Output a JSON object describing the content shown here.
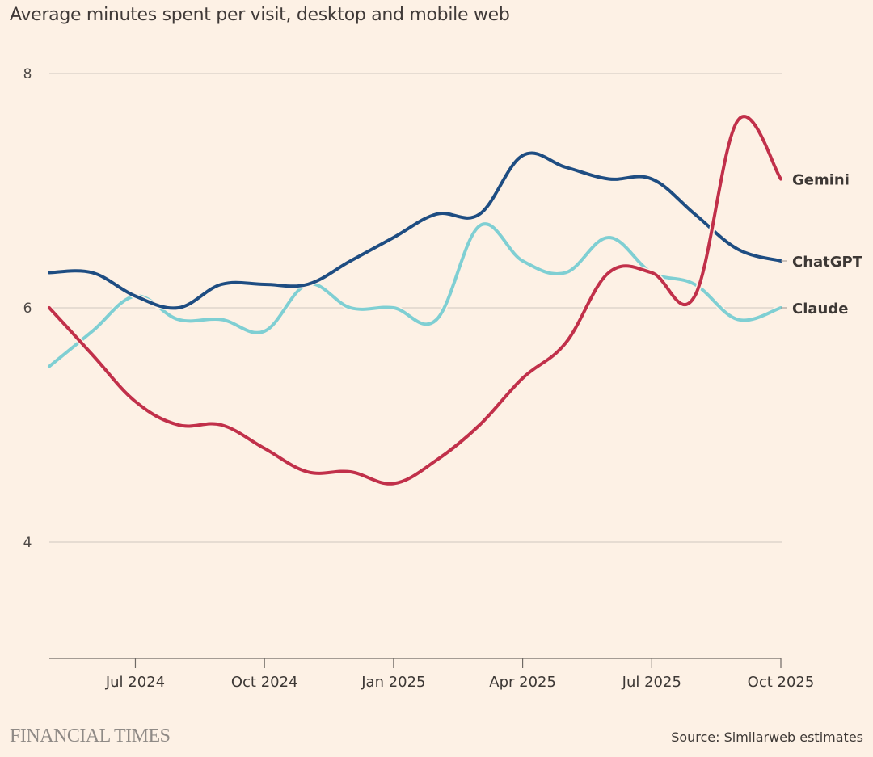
{
  "chart_data": {
    "type": "line",
    "title": "Average minutes spent per visit, desktop and mobile web",
    "xlabel": "",
    "ylabel": "",
    "ylim": [
      3,
      8.2
    ],
    "yticks": [
      4,
      6,
      8
    ],
    "grid": true,
    "x": [
      "May 2024",
      "Jun 2024",
      "Jul 2024",
      "Aug 2024",
      "Sep 2024",
      "Oct 2024",
      "Nov 2024",
      "Dec 2024",
      "Jan 2025",
      "Feb 2025",
      "Mar 2025",
      "Apr 2025",
      "May 2025",
      "Jun 2025",
      "Jul 2025",
      "Aug 2025",
      "Sep 2025",
      "Oct 2025"
    ],
    "xtick_labels": [
      {
        "index": 2,
        "label": "Jul 2024"
      },
      {
        "index": 5,
        "label": "Oct 2024"
      },
      {
        "index": 8,
        "label": "Jan 2025"
      },
      {
        "index": 11,
        "label": "Apr 2025"
      },
      {
        "index": 14,
        "label": "Jul 2025"
      },
      {
        "index": 17,
        "label": "Oct 2025"
      }
    ],
    "series": [
      {
        "name": "Gemini",
        "color": "#c1304a",
        "values": [
          6.0,
          5.6,
          5.2,
          5.0,
          5.0,
          4.8,
          4.6,
          4.6,
          4.5,
          4.7,
          5.0,
          5.4,
          5.7,
          6.3,
          6.3,
          6.1,
          7.6,
          7.1
        ]
      },
      {
        "name": "ChatGPT",
        "color": "#1e4d82",
        "values": [
          6.3,
          6.3,
          6.1,
          6.0,
          6.2,
          6.2,
          6.2,
          6.4,
          6.6,
          6.8,
          6.8,
          7.3,
          7.2,
          7.1,
          7.1,
          6.8,
          6.5,
          6.4
        ]
      },
      {
        "name": "Claude",
        "color": "#7fcfd3",
        "values": [
          5.5,
          5.8,
          6.1,
          5.9,
          5.9,
          5.8,
          6.2,
          6.0,
          6.0,
          5.9,
          6.7,
          6.4,
          6.3,
          6.6,
          6.3,
          6.2,
          5.9,
          6.0
        ]
      }
    ],
    "legend": "inline-right"
  },
  "branding": "FINANCIAL TIMES",
  "source": "Source: Similarweb estimates"
}
